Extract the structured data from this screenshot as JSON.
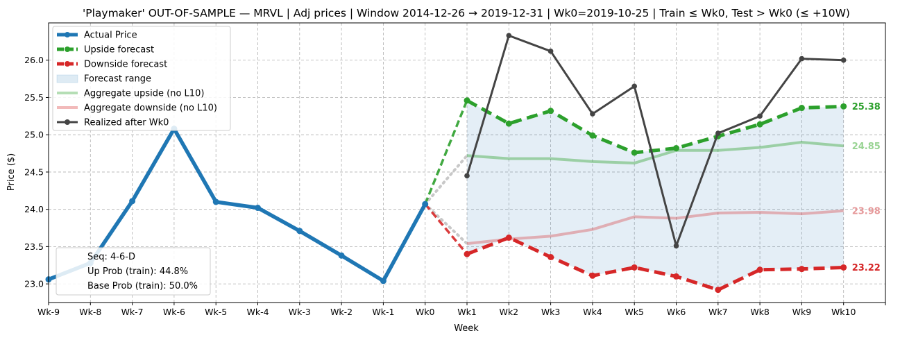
{
  "chart_data": {
    "type": "line",
    "title": "'Playmaker' OUT-OF-SAMPLE — MRVL  |  Adj prices  |  Window 2014-12-26 → 2019-12-31  |  Wk0=2019-10-25  |  Train ≤ Wk0, Test > Wk0 (≤ +10W)",
    "xlabel": "Week",
    "ylabel": "Price ($)",
    "x_ticks": [
      "Wk-9",
      "Wk-8",
      "Wk-7",
      "Wk-6",
      "Wk-5",
      "Wk-4",
      "Wk-3",
      "Wk-2",
      "Wk-1",
      "Wk0",
      "Wk1",
      "Wk2",
      "Wk3",
      "Wk4",
      "Wk5",
      "Wk6",
      "Wk7",
      "Wk8",
      "Wk9",
      "Wk10"
    ],
    "y_ticks": [
      "23.0",
      "23.5",
      "24.0",
      "24.5",
      "25.0",
      "25.5",
      "26.0"
    ],
    "xlim": [
      -9,
      11
    ],
    "ylim": [
      22.75,
      26.5
    ],
    "grid": true,
    "legend_position": "top-left",
    "series": [
      {
        "name": "Actual Price",
        "color": "#1f77b4",
        "x": [
          -9,
          -8,
          -7,
          -6,
          -5,
          -4,
          -3,
          -2,
          -1,
          0
        ],
        "values": [
          23.06,
          23.28,
          24.11,
          25.08,
          24.1,
          24.02,
          23.71,
          23.38,
          23.04,
          24.07
        ]
      },
      {
        "name": "Upside forecast",
        "color": "#2ca02c",
        "x": [
          1,
          2,
          3,
          4,
          5,
          6,
          7,
          8,
          9,
          10
        ],
        "values": [
          25.46,
          25.15,
          25.32,
          24.99,
          24.76,
          24.82,
          24.98,
          25.14,
          25.36,
          25.38
        ]
      },
      {
        "name": "Downside forecast",
        "color": "#d62728",
        "x": [
          1,
          2,
          3,
          4,
          5,
          6,
          7,
          8,
          9,
          10
        ],
        "values": [
          23.4,
          23.62,
          23.36,
          23.11,
          23.22,
          23.1,
          22.92,
          23.19,
          23.2,
          23.22
        ]
      },
      {
        "name": "Forecast range",
        "color": "#1f77b4"
      },
      {
        "name": "Aggregate upside (no L10)",
        "color": "#2ca02c",
        "x": [
          1,
          2,
          3,
          4,
          5,
          6,
          7,
          8,
          9,
          10
        ],
        "values": [
          24.72,
          24.68,
          24.68,
          24.64,
          24.62,
          24.79,
          24.79,
          24.83,
          24.9,
          24.85
        ]
      },
      {
        "name": "Aggregate downside (no L10)",
        "color": "#d62728",
        "x": [
          1,
          2,
          3,
          4,
          5,
          6,
          7,
          8,
          9,
          10
        ],
        "values": [
          23.54,
          23.6,
          23.64,
          23.73,
          23.9,
          23.88,
          23.95,
          23.96,
          23.94,
          23.98
        ]
      },
      {
        "name": "Realized after Wk0",
        "color": "#444444",
        "x": [
          1,
          2,
          3,
          4,
          5,
          6,
          7,
          8,
          9,
          10
        ],
        "values": [
          24.45,
          26.33,
          26.12,
          25.28,
          25.65,
          23.51,
          25.02,
          25.25,
          26.02,
          26.0
        ]
      }
    ],
    "end_labels": [
      {
        "text": "25.38",
        "value": 25.38,
        "color": "#2ca02c"
      },
      {
        "text": "24.85",
        "value": 24.85,
        "color": "#98d392"
      },
      {
        "text": "23.98",
        "value": 23.98,
        "color": "#e6999a"
      },
      {
        "text": "23.22",
        "value": 23.22,
        "color": "#d62728"
      }
    ],
    "info_box": [
      "Seq: 4-6-D",
      "Up Prob (train): 44.8%",
      "Base Prob (train): 50.0%"
    ]
  }
}
